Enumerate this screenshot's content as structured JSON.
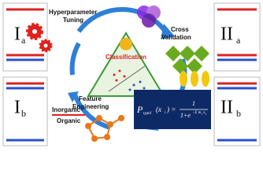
{
  "labels": {
    "hyperparameter": "Hyperparameter",
    "tuning": "Tuning",
    "cross": "Cross",
    "validation": "Validation",
    "classification": "Classification",
    "feature": "Feature",
    "engineering": "Engineering",
    "inorganic": "Inorganic",
    "organic": "Organic"
  },
  "panels": [
    {
      "main": "I",
      "sub": "a"
    },
    {
      "main": "I",
      "sub": "b"
    },
    {
      "main": "II",
      "sub": "a"
    },
    {
      "main": "II",
      "sub": "b"
    }
  ],
  "formula": {
    "p": "P",
    "p_sub": "typeI",
    "arg": "(x",
    "arg_sub": "i",
    "eq": ") =",
    "num": "1",
    "den": "1+e",
    "exp": "−Σ m",
    "exp_sub1": "i",
    "exp_x": "x",
    "exp_sub2": "i"
  }
}
